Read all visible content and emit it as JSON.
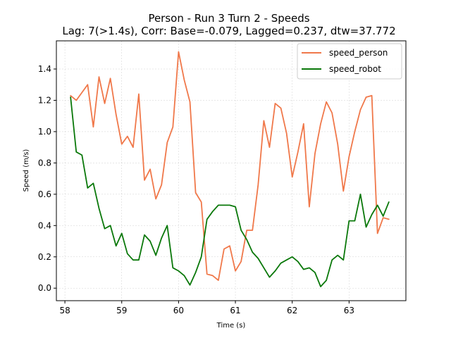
{
  "chart_data": {
    "type": "line",
    "title_line1": "Person - Run 3 Turn 2 - Speeds",
    "title_line2": "Lag: 7(>1.4s), Corr: Base=-0.079, Lagged=0.237, dtw=37.772",
    "xlabel": "Time (s)",
    "ylabel": "Speed (m/s)",
    "xlim": [
      57.85,
      64.0
    ],
    "ylim": [
      -0.08,
      1.58
    ],
    "xticks": [
      "58",
      "59",
      "60",
      "61",
      "62",
      "63"
    ],
    "xtick_values": [
      58,
      59,
      60,
      61,
      62,
      63
    ],
    "yticks": [
      "0.0",
      "0.2",
      "0.4",
      "0.6",
      "0.8",
      "1.0",
      "1.2",
      "1.4"
    ],
    "ytick_values": [
      0.0,
      0.2,
      0.4,
      0.6,
      0.8,
      1.0,
      1.2,
      1.4
    ],
    "grid": true,
    "legend_position": "top-right",
    "x": [
      58.1,
      58.2,
      58.3,
      58.4,
      58.5,
      58.6,
      58.7,
      58.8,
      58.9,
      59.0,
      59.1,
      59.2,
      59.3,
      59.4,
      59.5,
      59.6,
      59.7,
      59.8,
      59.9,
      60.0,
      60.1,
      60.2,
      60.3,
      60.4,
      60.5,
      60.6,
      60.7,
      60.8,
      60.9,
      61.0,
      61.1,
      61.2,
      61.3,
      61.4,
      61.5,
      61.6,
      61.7,
      61.8,
      61.9,
      62.0,
      62.1,
      62.2,
      62.3,
      62.4,
      62.5,
      62.6,
      62.7,
      62.8,
      62.9,
      63.0,
      63.1,
      63.2,
      63.3,
      63.4,
      63.5,
      63.6,
      63.7
    ],
    "series": [
      {
        "name": "speed_person",
        "color": "#f0784a",
        "values": [
          1.23,
          1.2,
          1.25,
          1.3,
          1.03,
          1.35,
          1.18,
          1.34,
          1.11,
          0.92,
          0.97,
          0.9,
          1.24,
          0.69,
          0.76,
          0.57,
          0.66,
          0.93,
          1.03,
          1.51,
          1.33,
          1.19,
          0.61,
          0.55,
          0.09,
          0.08,
          0.05,
          0.25,
          0.27,
          0.11,
          0.17,
          0.37,
          0.37,
          0.66,
          1.07,
          0.9,
          1.18,
          1.15,
          0.99,
          0.71,
          0.87,
          1.05,
          0.52,
          0.86,
          1.05,
          1.19,
          1.12,
          0.92,
          0.62,
          0.84,
          1.0,
          1.14,
          1.22,
          1.23,
          0.35,
          0.45,
          0.44
        ]
      },
      {
        "name": "speed_robot",
        "color": "#0a780a",
        "values": [
          1.22,
          0.87,
          0.85,
          0.64,
          0.67,
          0.51,
          0.38,
          0.4,
          0.27,
          0.35,
          0.22,
          0.18,
          0.18,
          0.34,
          0.3,
          0.21,
          0.32,
          0.4,
          0.13,
          0.11,
          0.08,
          0.02,
          0.1,
          0.2,
          0.44,
          0.49,
          0.53,
          0.53,
          0.53,
          0.52,
          0.37,
          0.31,
          0.23,
          0.19,
          0.13,
          0.07,
          0.11,
          0.16,
          0.18,
          0.2,
          0.17,
          0.12,
          0.13,
          0.1,
          0.01,
          0.05,
          0.18,
          0.21,
          0.18,
          0.43,
          0.43,
          0.6,
          0.39,
          0.47,
          0.53,
          0.46,
          0.55
        ]
      }
    ]
  }
}
